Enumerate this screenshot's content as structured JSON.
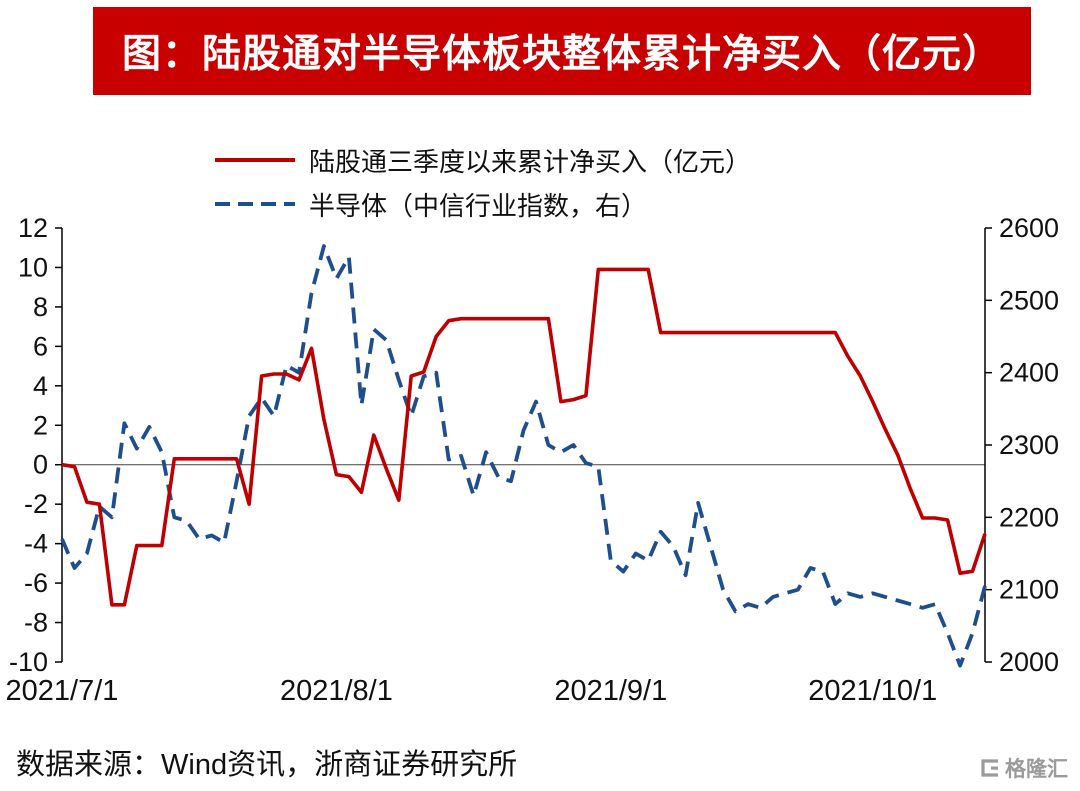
{
  "banner": {
    "title": "图：陆股通对半导体板块整体累计净买入（亿元）",
    "bg_color": "#C80000",
    "text_color": "#FFFFFF"
  },
  "source": {
    "text": "数据来源：Wind资讯，浙商证券研究所"
  },
  "logo": {
    "text": "格隆汇",
    "color": "#9B9B9B"
  },
  "chart_data": {
    "type": "line",
    "title": "图：陆股通对半导体板块整体累计净买入（亿元）",
    "grid": false,
    "legend_position": "top-left",
    "x_axis": {
      "tick_labels": [
        "2021/7/1",
        "2021/8/1",
        "2021/9/1",
        "2021/10/1"
      ],
      "tick_positions": [
        0,
        22,
        44,
        65
      ],
      "range": [
        0,
        74
      ]
    },
    "left_axis": {
      "min": -10,
      "max": 12,
      "ticks": [
        12,
        10,
        8,
        6,
        4,
        2,
        0,
        -2,
        -4,
        -6,
        -8,
        -10
      ]
    },
    "right_axis": {
      "min": 2000,
      "max": 2600,
      "ticks": [
        2600,
        2500,
        2400,
        2300,
        2200,
        2100,
        2000
      ]
    },
    "series": [
      {
        "id": "net-buy-cumulative",
        "name": "陆股通三季度以来累计净买入（亿元）",
        "axis": "left",
        "line_style": "solid",
        "color": "#C00000",
        "values": [
          0,
          -0.1,
          -1.9,
          -2,
          -7.1,
          -7.1,
          -4.1,
          -4.1,
          -4.1,
          0.3,
          0.3,
          0.3,
          0.3,
          0.3,
          0.3,
          -2,
          4.5,
          4.6,
          4.6,
          4.3,
          5.9,
          2.3,
          -0.5,
          -0.6,
          -1.4,
          1.5,
          -0.2,
          -1.8,
          4.5,
          4.7,
          6.5,
          7.3,
          7.4,
          7.4,
          7.4,
          7.4,
          7.4,
          7.4,
          7.4,
          7.4,
          3.2,
          3.3,
          3.5,
          9.9,
          9.9,
          9.9,
          9.9,
          9.9,
          6.7,
          6.7,
          6.7,
          6.7,
          6.7,
          6.7,
          6.7,
          6.7,
          6.7,
          6.7,
          6.7,
          6.7,
          6.7,
          6.7,
          6.7,
          5.5,
          4.5,
          3.2,
          1.8,
          0.5,
          -1.2,
          -2.7,
          -2.7,
          -2.8,
          -5.5,
          -5.4,
          -3.5
        ]
      },
      {
        "id": "semiconductor-index",
        "name": "半导体（中信行业指数，右）",
        "axis": "right",
        "line_style": "dashed",
        "color": "#1F4E8F",
        "values": [
          2170,
          2130,
          2150,
          2215,
          2200,
          2330,
          2295,
          2325,
          2290,
          2200,
          2195,
          2170,
          2175,
          2165,
          2250,
          2340,
          2365,
          2340,
          2410,
          2400,
          2510,
          2575,
          2530,
          2560,
          2355,
          2460,
          2445,
          2390,
          2340,
          2395,
          2400,
          2280,
          2285,
          2230,
          2290,
          2255,
          2250,
          2320,
          2360,
          2300,
          2290,
          2300,
          2275,
          2270,
          2140,
          2125,
          2150,
          2140,
          2180,
          2160,
          2120,
          2220,
          2160,
          2100,
          2070,
          2080,
          2075,
          2090,
          2095,
          2100,
          2130,
          2125,
          2080,
          2095,
          2090,
          2095,
          2090,
          2085,
          2080,
          2075,
          2080,
          2040,
          1995,
          2040,
          2105
        ]
      }
    ]
  }
}
